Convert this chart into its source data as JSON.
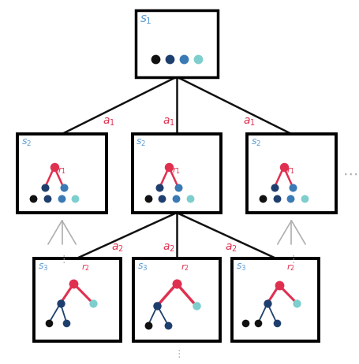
{
  "bg_color": "#ffffff",
  "black": "#111111",
  "dark_blue": "#1e3f6e",
  "mid_blue": "#3a7ab5",
  "light_blue": "#7ecece",
  "red": "#e03050",
  "s_color": "#5b9bd5",
  "a_color": "#e03050",
  "gray_line": "#b0b0b0",
  "tree_line": "#111111"
}
